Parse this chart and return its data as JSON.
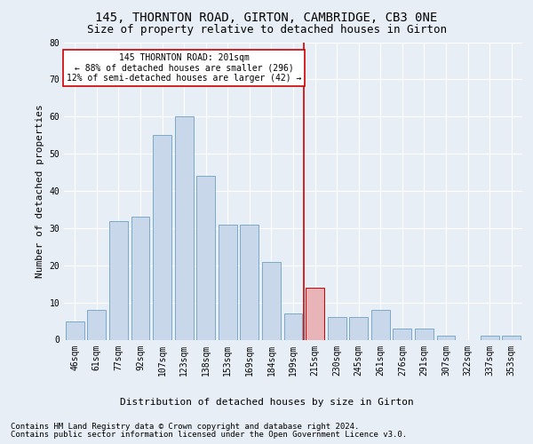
{
  "title": "145, THORNTON ROAD, GIRTON, CAMBRIDGE, CB3 0NE",
  "subtitle": "Size of property relative to detached houses in Girton",
  "xlabel": "Distribution of detached houses by size in Girton",
  "ylabel": "Number of detached properties",
  "bar_labels": [
    "46sqm",
    "61sqm",
    "77sqm",
    "92sqm",
    "107sqm",
    "123sqm",
    "138sqm",
    "153sqm",
    "169sqm",
    "184sqm",
    "199sqm",
    "215sqm",
    "230sqm",
    "245sqm",
    "261sqm",
    "276sqm",
    "291sqm",
    "307sqm",
    "322sqm",
    "337sqm",
    "353sqm"
  ],
  "bar_values": [
    5,
    8,
    32,
    33,
    55,
    60,
    44,
    31,
    31,
    21,
    7,
    14,
    6,
    6,
    8,
    3,
    3,
    1,
    0,
    1,
    1
  ],
  "bar_color": "#c8d8ea",
  "bar_edge_color": "#7aaac8",
  "highlight_index": 11,
  "highlight_bar_color": "#e8b4b8",
  "highlight_bar_edge_color": "#cc0000",
  "vline_color": "#cc0000",
  "annotation_title": "145 THORNTON ROAD: 201sqm",
  "annotation_line1": "← 88% of detached houses are smaller (296)",
  "annotation_line2": "12% of semi-detached houses are larger (42) →",
  "annotation_box_facecolor": "#ffffff",
  "annotation_box_edgecolor": "#cc0000",
  "ylim": [
    0,
    80
  ],
  "yticks": [
    0,
    10,
    20,
    30,
    40,
    50,
    60,
    70,
    80
  ],
  "background_color": "#e8eef5",
  "plot_bg_color": "#e8eef5",
  "footer_line1": "Contains HM Land Registry data © Crown copyright and database right 2024.",
  "footer_line2": "Contains public sector information licensed under the Open Government Licence v3.0.",
  "title_fontsize": 10,
  "subtitle_fontsize": 9,
  "ylabel_fontsize": 8,
  "xlabel_fontsize": 8,
  "tick_fontsize": 7,
  "annotation_fontsize": 7,
  "footer_fontsize": 6.5
}
